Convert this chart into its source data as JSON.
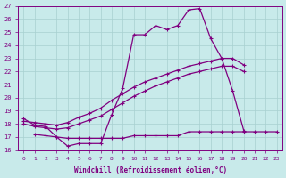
{
  "xlabel": "Windchill (Refroidissement éolien,°C)",
  "bg_color": "#c8eaea",
  "line_color": "#800080",
  "grid_color": "#a8d0d0",
  "xlim_min": -0.5,
  "xlim_max": 23.5,
  "ylim_min": 16,
  "ylim_max": 27,
  "xticks": [
    0,
    1,
    2,
    3,
    4,
    5,
    6,
    7,
    8,
    9,
    10,
    11,
    12,
    13,
    14,
    15,
    16,
    17,
    18,
    19,
    20,
    21,
    22,
    23
  ],
  "yticks": [
    16,
    17,
    18,
    19,
    20,
    21,
    22,
    23,
    24,
    25,
    26,
    27
  ],
  "line1_x": [
    0,
    1,
    2,
    3,
    4,
    5,
    6,
    7,
    8,
    9,
    10,
    11,
    12,
    13,
    14,
    15,
    16,
    17,
    18,
    19,
    20
  ],
  "line1_y": [
    18.4,
    17.9,
    17.8,
    17.0,
    16.3,
    16.5,
    16.5,
    16.5,
    18.7,
    20.7,
    24.8,
    24.8,
    25.5,
    25.2,
    25.5,
    26.7,
    26.8,
    24.5,
    23.0,
    20.5,
    17.5
  ],
  "line2_x": [
    0,
    1,
    2,
    3,
    4,
    5,
    6,
    7,
    8,
    9,
    10,
    11,
    12,
    13,
    14,
    15,
    16,
    17,
    18,
    19,
    20
  ],
  "line2_y": [
    18.2,
    18.1,
    18.0,
    17.9,
    18.1,
    18.5,
    18.8,
    19.2,
    19.8,
    20.3,
    20.8,
    21.2,
    21.5,
    21.8,
    22.1,
    22.4,
    22.6,
    22.8,
    23.0,
    23.0,
    22.5
  ],
  "line3_x": [
    0,
    1,
    2,
    3,
    4,
    5,
    6,
    7,
    8,
    9,
    10,
    11,
    12,
    13,
    14,
    15,
    16,
    17,
    18,
    19,
    20
  ],
  "line3_y": [
    18.0,
    17.8,
    17.7,
    17.6,
    17.7,
    18.0,
    18.3,
    18.6,
    19.1,
    19.6,
    20.1,
    20.5,
    20.9,
    21.2,
    21.5,
    21.8,
    22.0,
    22.2,
    22.4,
    22.4,
    22.0
  ],
  "line4_x": [
    1,
    2,
    3,
    4,
    5,
    6,
    7,
    8,
    9,
    10,
    11,
    12,
    13,
    14,
    15,
    16,
    17,
    18,
    19,
    20,
    21,
    22,
    23
  ],
  "line4_y": [
    17.2,
    17.1,
    17.0,
    16.9,
    16.9,
    16.9,
    16.9,
    16.9,
    16.9,
    17.1,
    17.1,
    17.1,
    17.1,
    17.1,
    17.4,
    17.4,
    17.4,
    17.4,
    17.4,
    17.4,
    17.4,
    17.4,
    17.4
  ]
}
